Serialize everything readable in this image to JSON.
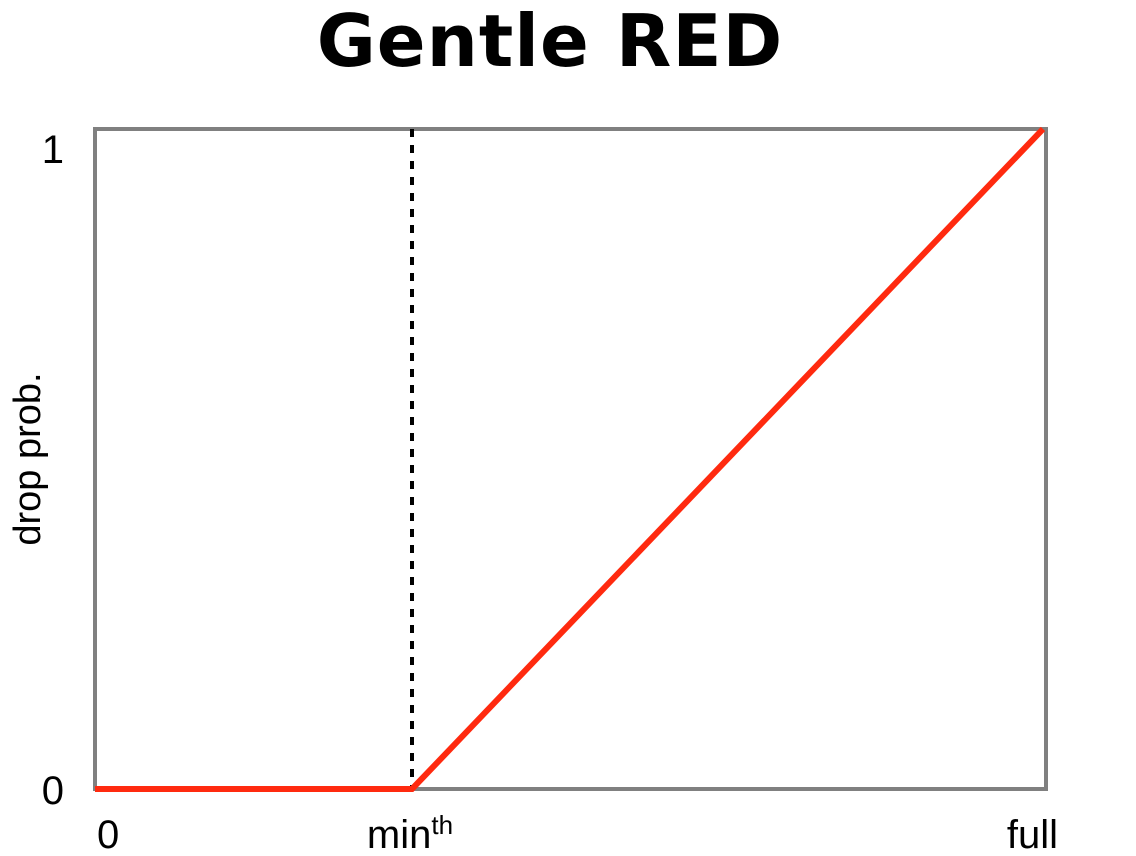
{
  "chart_data": {
    "type": "line",
    "title": "Gentle RED",
    "ylabel": "drop prob.",
    "xlabel": "",
    "x_ticks": [
      {
        "value": 0,
        "label": "0",
        "sup": ""
      },
      {
        "value": 1,
        "label": "min",
        "sup": "th"
      },
      {
        "value": 3,
        "label": "full",
        "sup": ""
      }
    ],
    "y_ticks": [
      {
        "value": 0,
        "label": "0"
      },
      {
        "value": 1,
        "label": "1"
      }
    ],
    "xlim": [
      0,
      3
    ],
    "ylim": [
      0,
      1
    ],
    "series": [
      {
        "name": "drop probability",
        "color": "#ff2a0f",
        "points": [
          [
            0,
            0
          ],
          [
            1,
            0
          ],
          [
            3,
            1
          ]
        ]
      }
    ],
    "threshold_line": {
      "x": 1,
      "style": "dotted",
      "color": "#000000"
    },
    "frame_color": "#808080",
    "grid": false,
    "legend": "none"
  }
}
